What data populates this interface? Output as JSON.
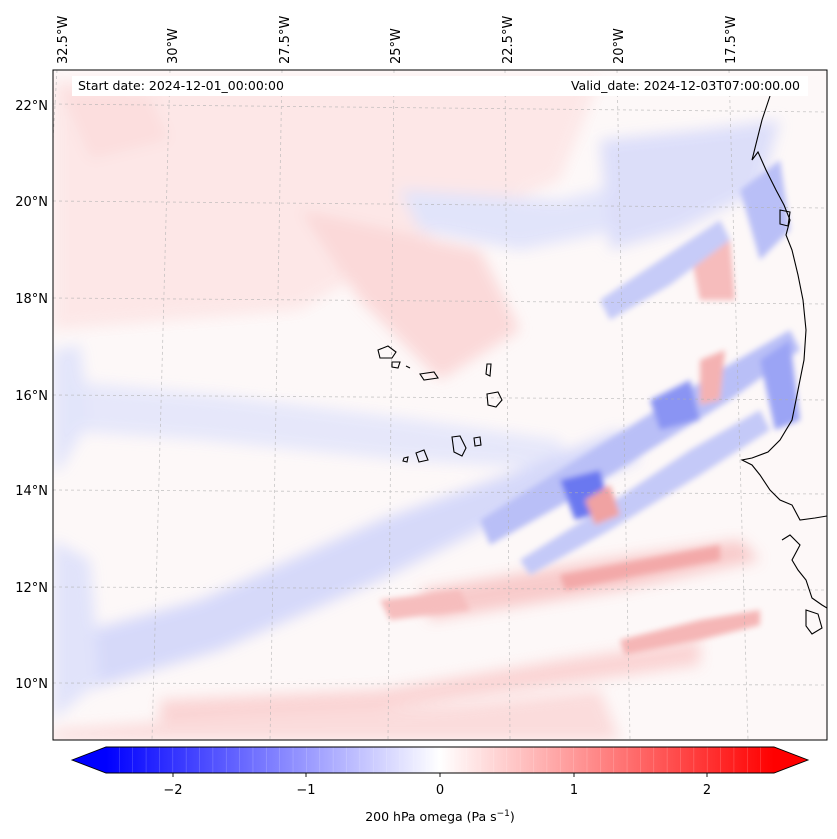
{
  "header": {
    "start_date": "Start date: 2024-12-01_00:00:00",
    "valid_date": "Valid_date: 2024-12-03T07:00:00.00"
  },
  "map": {
    "lon_labels": [
      "32.5°W",
      "30°W",
      "27.5°W",
      "25°W",
      "22.5°W",
      "20°W",
      "17.5°W"
    ],
    "lat_labels": [
      "22°N",
      "20°N",
      "18°N",
      "16°N",
      "14°N",
      "12°N",
      "10°N"
    ],
    "gridlines": true,
    "field": "200 hPa omega",
    "extent": {
      "lon_min": -32.6,
      "lon_max": -15.8,
      "lat_min": 8.8,
      "lat_max": 22.8
    }
  },
  "colorbar": {
    "label_main": "200 hPa omega (Pa s",
    "label_sup": "−1",
    "label_close": ")",
    "ticks": [
      "−2",
      "−1",
      "0",
      "1",
      "2"
    ],
    "tick_values": [
      -2,
      -1,
      0,
      1,
      2
    ],
    "range": [
      -2.5,
      2.5
    ],
    "extend": "both",
    "colors": {
      "low": "#0000ff",
      "mid": "#ffffff",
      "high": "#ff0000"
    }
  },
  "colors": {
    "coastline": "#000000",
    "gridline": "#b0b0b0",
    "frame": "#000000"
  }
}
